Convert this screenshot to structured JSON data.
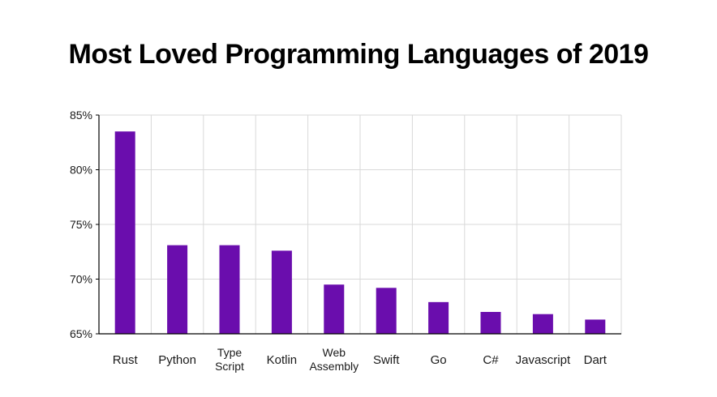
{
  "chart_data": {
    "type": "bar",
    "title": "Most Loved Programming Languages of 2019",
    "categories": [
      [
        "Rust"
      ],
      [
        "Python"
      ],
      [
        "Type",
        "Script"
      ],
      [
        "Kotlin"
      ],
      [
        "Web",
        "Assembly"
      ],
      [
        "Swift"
      ],
      [
        "Go"
      ],
      [
        "C#"
      ],
      [
        "Javascript"
      ],
      [
        "Dart"
      ]
    ],
    "values": [
      83.5,
      73.1,
      73.1,
      72.6,
      69.5,
      69.2,
      67.9,
      67.0,
      66.8,
      66.3
    ],
    "ylim": [
      65,
      85
    ],
    "yticks": [
      65,
      70,
      75,
      80,
      85
    ],
    "ytick_labels": [
      "65%",
      "70%",
      "75%",
      "80%",
      "85%"
    ],
    "xlabel": "",
    "ylabel": "",
    "grid": true,
    "bar_color": "#6a0dad",
    "grid_color": "#d9d9d9",
    "axis_color": "#000000"
  }
}
